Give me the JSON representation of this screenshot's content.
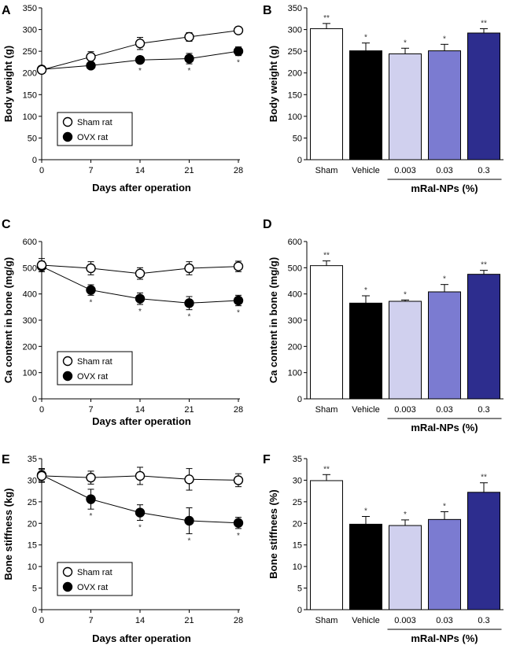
{
  "chart_data": [
    {
      "panel": "A",
      "type": "line",
      "xlabel": "Days after operation",
      "ylabel": "Body weight (g)",
      "xlim": [
        0,
        28
      ],
      "ylim": [
        0,
        350
      ],
      "xticks": [
        "0",
        "7",
        "14",
        "21",
        "28"
      ],
      "yticks": [
        "0",
        "50",
        "100",
        "150",
        "200",
        "250",
        "300",
        "350"
      ],
      "legend": {
        "placement": "lower-left",
        "entries": [
          "Sham rat",
          "OVX rat"
        ]
      },
      "series": [
        {
          "name": "Sham rat",
          "marker": "open-circle",
          "x": [
            0,
            7,
            14,
            21,
            28
          ],
          "values": [
            207,
            237,
            268,
            283,
            298
          ],
          "errors": [
            8,
            12,
            14,
            10,
            8
          ],
          "labels": [
            "",
            "",
            "",
            "",
            ""
          ]
        },
        {
          "name": "OVX rat",
          "marker": "filled-circle",
          "x": [
            0,
            7,
            14,
            21,
            28
          ],
          "values": [
            208,
            217,
            230,
            233,
            250
          ],
          "errors": [
            8,
            5,
            8,
            12,
            10
          ],
          "labels": [
            "",
            "",
            "*",
            "*",
            "*"
          ]
        }
      ]
    },
    {
      "panel": "B",
      "type": "bar",
      "ylabel": "Body weight (g)",
      "ylim": [
        0,
        350
      ],
      "yticks": [
        "0",
        "50",
        "100",
        "150",
        "200",
        "250",
        "300",
        "350"
      ],
      "categories": [
        "Sham",
        "Vehicle",
        "0.003",
        "0.03",
        "0.3"
      ],
      "group_label": "mRal-NPs (%)",
      "values": [
        302,
        251,
        244,
        251,
        292
      ],
      "errors": [
        12,
        18,
        13,
        15,
        10
      ],
      "labels": [
        "**",
        "*",
        "*",
        "*",
        "**"
      ],
      "colors": [
        "#ffffff",
        "#000000",
        "#d0d0ee",
        "#7b7bd1",
        "#2d2d8e"
      ]
    },
    {
      "panel": "C",
      "type": "line",
      "xlabel": "Days after operation",
      "ylabel": "Ca content in bone (mg/g)",
      "xlim": [
        0,
        28
      ],
      "ylim": [
        0,
        600
      ],
      "xticks": [
        "0",
        "7",
        "14",
        "21",
        "28"
      ],
      "yticks": [
        "0",
        "100",
        "200",
        "300",
        "400",
        "500",
        "600"
      ],
      "legend": {
        "placement": "lower-left",
        "entries": [
          "Sham rat",
          "OVX rat"
        ]
      },
      "series": [
        {
          "name": "Sham rat",
          "marker": "open-circle",
          "x": [
            0,
            7,
            14,
            21,
            28
          ],
          "values": [
            510,
            498,
            478,
            498,
            505
          ],
          "errors": [
            25,
            25,
            22,
            25,
            20
          ],
          "labels": [
            "",
            "",
            "",
            "",
            ""
          ]
        },
        {
          "name": "OVX rat",
          "marker": "filled-circle",
          "x": [
            0,
            7,
            14,
            21,
            28
          ],
          "values": [
            505,
            415,
            382,
            365,
            375
          ],
          "errors": [
            20,
            20,
            22,
            25,
            20
          ],
          "labels": [
            "",
            "*",
            "*",
            "*",
            "*"
          ]
        }
      ]
    },
    {
      "panel": "D",
      "type": "bar",
      "ylabel": "Ca content in bone (mg/g)",
      "ylim": [
        0,
        600
      ],
      "yticks": [
        "0",
        "100",
        "200",
        "300",
        "400",
        "500",
        "600"
      ],
      "categories": [
        "Sham",
        "Vehicle",
        "0.003",
        "0.03",
        "0.3"
      ],
      "group_label": "mRal-NPs (%)",
      "values": [
        508,
        365,
        372,
        408,
        475
      ],
      "errors": [
        18,
        28,
        5,
        28,
        15
      ],
      "labels": [
        "**",
        "*",
        "*",
        "*",
        "**"
      ],
      "colors": [
        "#ffffff",
        "#000000",
        "#d0d0ee",
        "#7b7bd1",
        "#2d2d8e"
      ]
    },
    {
      "panel": "E",
      "type": "line",
      "xlabel": "Days after operation",
      "ylabel": "Bone stiffness (kg)",
      "xlim": [
        0,
        28
      ],
      "ylim": [
        0,
        35
      ],
      "xticks": [
        "0",
        "7",
        "14",
        "21",
        "28"
      ],
      "yticks": [
        "0",
        "5",
        "10",
        "15",
        "20",
        "25",
        "30",
        "35"
      ],
      "legend": {
        "placement": "lower-left",
        "entries": [
          "Sham rat",
          "OVX rat"
        ]
      },
      "series": [
        {
          "name": "Sham rat",
          "marker": "open-circle",
          "x": [
            0,
            7,
            14,
            21,
            28
          ],
          "values": [
            31,
            30.6,
            31,
            30.2,
            30
          ],
          "errors": [
            1.5,
            1.5,
            2,
            2.5,
            1.5
          ],
          "labels": [
            "",
            "",
            "",
            "",
            ""
          ]
        },
        {
          "name": "OVX rat",
          "marker": "filled-circle",
          "x": [
            0,
            7,
            14,
            21,
            28
          ],
          "values": [
            31.2,
            25.6,
            22.5,
            20.6,
            20.1
          ],
          "errors": [
            1.5,
            2.3,
            1.8,
            3,
            1.3
          ],
          "labels": [
            "",
            "*",
            "*",
            "*",
            "*"
          ]
        }
      ]
    },
    {
      "panel": "F",
      "type": "bar",
      "ylabel": "Bone stiffnees (%)",
      "ylim": [
        0,
        35
      ],
      "yticks": [
        "0",
        "5",
        "10",
        "15",
        "20",
        "25",
        "30",
        "35"
      ],
      "categories": [
        "Sham",
        "Vehicle",
        "0.003",
        "0.03",
        "0.3"
      ],
      "group_label": "mRal-NPs (%)",
      "values": [
        29.9,
        19.8,
        19.5,
        20.9,
        27.2
      ],
      "errors": [
        1.4,
        1.8,
        1.3,
        1.8,
        2.2
      ],
      "labels": [
        "**",
        "*",
        "*",
        "*",
        "**"
      ],
      "colors": [
        "#ffffff",
        "#000000",
        "#d0d0ee",
        "#7b7bd1",
        "#2d2d8e"
      ]
    }
  ]
}
